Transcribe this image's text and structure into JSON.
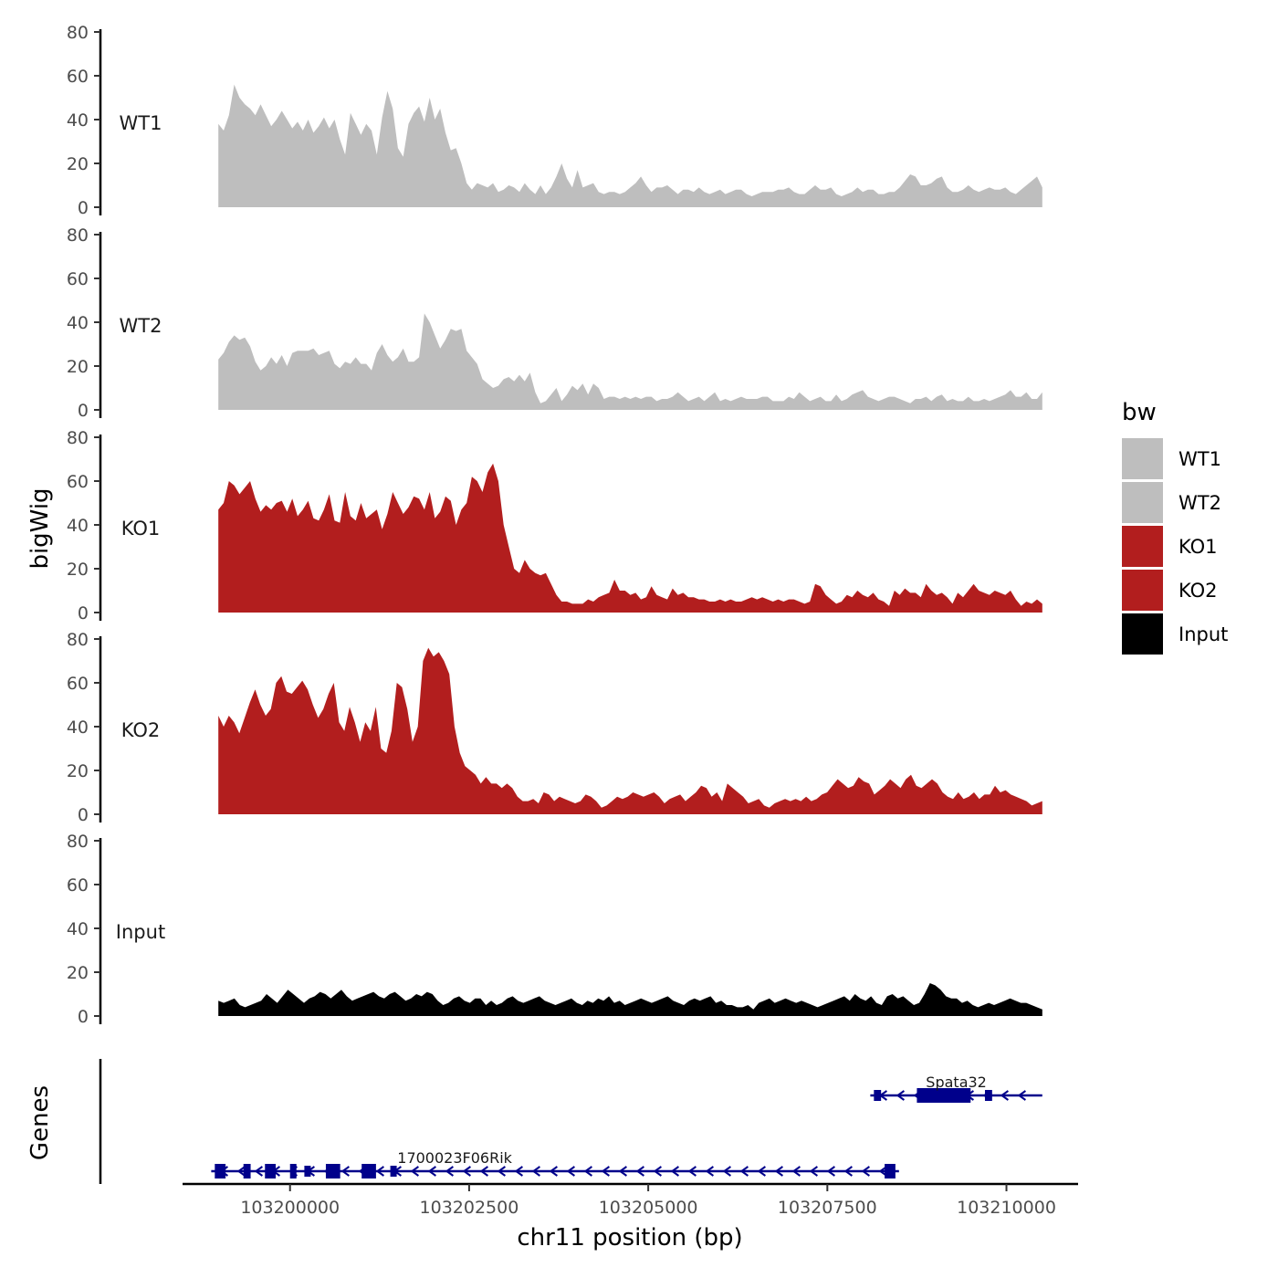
{
  "chart_data": {
    "type": "area",
    "chromosome": "chr11",
    "xlabel": "chr11 position (bp)",
    "ylabel": "bigWig",
    "genes_label": "Genes",
    "xlim": [
      103198500,
      103211000
    ],
    "ylim": [
      0,
      80
    ],
    "y_ticks": [
      "0",
      "20",
      "40",
      "60",
      "80"
    ],
    "x_ticks": [
      {
        "value": 103200000,
        "label": "103200000"
      },
      {
        "value": 103202500,
        "label": "103202500"
      },
      {
        "value": 103205000,
        "label": "103205000"
      },
      {
        "value": 103207500,
        "label": "103207500"
      },
      {
        "value": 103210000,
        "label": "103210000"
      }
    ],
    "x_start": 103199000,
    "x_end": 103210500,
    "tracks": [
      {
        "name": "WT1",
        "color": "#bebebe",
        "values": [
          38,
          35,
          42,
          56,
          50,
          47,
          45,
          42,
          47,
          42,
          37,
          40,
          44,
          40,
          36,
          39,
          35,
          40,
          34,
          37,
          41,
          36,
          40,
          31,
          24,
          43,
          38,
          33,
          38,
          35,
          24,
          41,
          53,
          45,
          27,
          23,
          38,
          43,
          46,
          39,
          50,
          40,
          45,
          34,
          26,
          27,
          20,
          11,
          8,
          11,
          10,
          9,
          11,
          7,
          8,
          10,
          9,
          7,
          11,
          8,
          6,
          10,
          6,
          9,
          14,
          20,
          13,
          9,
          17,
          9,
          10,
          11,
          7,
          6,
          7,
          7,
          6,
          7,
          9,
          11,
          14,
          10,
          7,
          9,
          9,
          10,
          8,
          6,
          8,
          8,
          7,
          9,
          7,
          6,
          7,
          8,
          6,
          7,
          8,
          8,
          6,
          5,
          6,
          7,
          7,
          7,
          8,
          8,
          9,
          7,
          6,
          6,
          8,
          10,
          8,
          8,
          9,
          6,
          5,
          6,
          7,
          9,
          7,
          8,
          8,
          6,
          6,
          7,
          7,
          9,
          12,
          15,
          14,
          10,
          10,
          11,
          13,
          14,
          9,
          7,
          7,
          8,
          10,
          8,
          7,
          8,
          9,
          8,
          8,
          9,
          7,
          6,
          8,
          10,
          12,
          14,
          9
        ]
      },
      {
        "name": "WT2",
        "color": "#bebebe",
        "values": [
          23,
          26,
          31,
          34,
          32,
          33,
          29,
          22,
          18,
          20,
          24,
          21,
          25,
          20,
          26,
          27,
          27,
          27,
          28,
          25,
          26,
          27,
          21,
          19,
          22,
          21,
          24,
          21,
          21,
          18,
          26,
          30,
          25,
          22,
          24,
          28,
          22,
          22,
          24,
          44,
          40,
          34,
          28,
          32,
          37,
          36,
          37,
          27,
          24,
          21,
          14,
          12,
          10,
          11,
          14,
          15,
          13,
          16,
          13,
          17,
          8,
          3,
          4,
          7,
          10,
          4,
          7,
          11,
          9,
          12,
          7,
          12,
          10,
          5,
          6,
          6,
          5,
          6,
          5,
          6,
          5,
          6,
          6,
          4,
          5,
          5,
          6,
          8,
          6,
          4,
          5,
          6,
          4,
          6,
          8,
          4,
          5,
          4,
          5,
          6,
          5,
          5,
          5,
          6,
          6,
          4,
          4,
          4,
          6,
          5,
          8,
          6,
          4,
          5,
          6,
          4,
          4,
          7,
          4,
          5,
          7,
          8,
          9,
          6,
          5,
          4,
          5,
          6,
          6,
          5,
          4,
          3,
          5,
          5,
          6,
          4,
          6,
          7,
          4,
          5,
          4,
          4,
          6,
          4,
          4,
          5,
          4,
          5,
          6,
          7,
          9,
          6,
          6,
          8,
          5,
          5,
          8
        ]
      },
      {
        "name": "KO1",
        "color": "#b21e1e",
        "values": [
          47,
          50,
          60,
          58,
          54,
          57,
          60,
          52,
          46,
          49,
          47,
          50,
          51,
          46,
          52,
          44,
          47,
          51,
          43,
          42,
          47,
          54,
          42,
          41,
          55,
          44,
          42,
          50,
          43,
          45,
          47,
          38,
          45,
          55,
          50,
          45,
          48,
          53,
          52,
          47,
          55,
          43,
          46,
          53,
          51,
          40,
          47,
          50,
          62,
          60,
          55,
          64,
          68,
          60,
          40,
          30,
          20,
          18,
          24,
          20,
          18,
          17,
          18,
          13,
          8,
          5,
          5,
          4,
          4,
          4,
          6,
          5,
          7,
          8,
          9,
          15,
          10,
          10,
          8,
          9,
          6,
          7,
          12,
          8,
          7,
          6,
          11,
          8,
          9,
          7,
          7,
          6,
          6,
          5,
          5,
          6,
          5,
          6,
          5,
          5,
          6,
          7,
          6,
          7,
          6,
          5,
          6,
          5,
          6,
          6,
          5,
          4,
          5,
          13,
          12,
          8,
          6,
          4,
          5,
          8,
          7,
          10,
          8,
          7,
          9,
          6,
          5,
          3,
          10,
          8,
          11,
          9,
          9,
          7,
          13,
          10,
          8,
          9,
          7,
          4,
          9,
          7,
          10,
          13,
          10,
          9,
          8,
          10,
          9,
          8,
          10,
          6,
          3,
          5,
          4,
          6,
          4
        ]
      },
      {
        "name": "KO2",
        "color": "#b21e1e",
        "values": [
          45,
          40,
          45,
          42,
          37,
          44,
          51,
          57,
          50,
          45,
          48,
          60,
          63,
          56,
          55,
          58,
          61,
          57,
          50,
          44,
          48,
          55,
          60,
          42,
          38,
          49,
          42,
          33,
          42,
          38,
          49,
          30,
          28,
          38,
          60,
          58,
          48,
          33,
          40,
          70,
          76,
          72,
          74,
          70,
          64,
          40,
          28,
          22,
          20,
          18,
          14,
          17,
          14,
          14,
          12,
          14,
          12,
          8,
          6,
          6,
          7,
          5,
          10,
          9,
          6,
          8,
          7,
          6,
          5,
          6,
          9,
          8,
          6,
          3,
          4,
          6,
          8,
          7,
          8,
          10,
          9,
          8,
          9,
          10,
          8,
          5,
          7,
          8,
          9,
          6,
          8,
          10,
          13,
          12,
          8,
          10,
          6,
          14,
          12,
          10,
          8,
          5,
          6,
          7,
          4,
          3,
          5,
          6,
          7,
          6,
          7,
          6,
          8,
          6,
          7,
          9,
          10,
          13,
          16,
          14,
          12,
          13,
          17,
          15,
          14,
          9,
          11,
          13,
          16,
          14,
          12,
          16,
          18,
          13,
          12,
          14,
          16,
          14,
          10,
          8,
          7,
          10,
          7,
          8,
          10,
          7,
          9,
          9,
          13,
          10,
          11,
          9,
          8,
          7,
          6,
          4,
          5,
          6
        ]
      },
      {
        "name": "Input",
        "color": "#000000",
        "values": [
          7,
          6,
          7,
          8,
          5,
          4,
          5,
          6,
          7,
          10,
          8,
          6,
          9,
          12,
          10,
          8,
          6,
          8,
          9,
          11,
          10,
          8,
          10,
          12,
          9,
          7,
          8,
          9,
          10,
          11,
          9,
          8,
          10,
          11,
          9,
          7,
          8,
          10,
          9,
          11,
          10,
          7,
          5,
          6,
          8,
          9,
          7,
          6,
          8,
          8,
          5,
          7,
          5,
          6,
          8,
          9,
          7,
          6,
          7,
          8,
          9,
          7,
          6,
          5,
          6,
          7,
          8,
          6,
          5,
          7,
          6,
          8,
          7,
          9,
          6,
          7,
          5,
          6,
          7,
          8,
          7,
          6,
          7,
          8,
          9,
          7,
          6,
          5,
          7,
          8,
          7,
          8,
          9,
          6,
          7,
          5,
          5,
          4,
          4,
          5,
          3,
          6,
          7,
          8,
          6,
          7,
          8,
          7,
          6,
          7,
          6,
          5,
          4,
          5,
          6,
          7,
          8,
          9,
          7,
          10,
          8,
          7,
          9,
          6,
          5,
          9,
          10,
          8,
          9,
          7,
          5,
          6,
          10,
          15,
          14,
          12,
          9,
          8,
          8,
          6,
          7,
          5,
          4,
          5,
          6,
          5,
          6,
          7,
          8,
          7,
          6,
          6,
          5,
          4,
          3
        ]
      }
    ],
    "genes": [
      {
        "name": "Spata32",
        "start": 103208100,
        "end": 103210500,
        "strand": "-",
        "row": 1,
        "exons": [
          [
            103208150,
            103208250,
            "small"
          ],
          [
            103208750,
            103209500,
            "large"
          ],
          [
            103209700,
            103209800,
            "small"
          ]
        ]
      },
      {
        "name": "1700023F06Rik",
        "start": 103198900,
        "end": 103208500,
        "strand": "-",
        "row": 0,
        "exons": [
          [
            103198950,
            103199100,
            "large"
          ],
          [
            103199350,
            103199450,
            "large"
          ],
          [
            103199650,
            103199800,
            "large"
          ],
          [
            103200000,
            103200080,
            "large"
          ],
          [
            103200200,
            103200250,
            "small"
          ],
          [
            103200500,
            103200700,
            "large"
          ],
          [
            103201000,
            103201200,
            "large"
          ],
          [
            103201400,
            103201450,
            "small"
          ],
          [
            103208300,
            103208450,
            "large"
          ]
        ]
      }
    ],
    "legend": {
      "title": "bw",
      "entries": [
        {
          "label": "WT1",
          "color": "#bebebe"
        },
        {
          "label": "WT2",
          "color": "#bebebe"
        },
        {
          "label": "KO1",
          "color": "#b21e1e"
        },
        {
          "label": "KO2",
          "color": "#b21e1e"
        },
        {
          "label": "Input",
          "color": "#000000"
        }
      ]
    },
    "gene_color": "#00008b"
  }
}
